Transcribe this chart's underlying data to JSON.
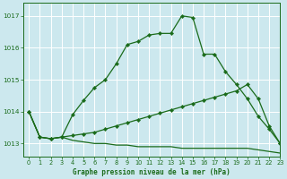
{
  "bg_color": "#cce8ee",
  "grid_color": "#ffffff",
  "line_color": "#1a6b1a",
  "title": "Graphe pression niveau de la mer (hPa)",
  "xlim": [
    -0.5,
    23
  ],
  "ylim": [
    1012.6,
    1017.4
  ],
  "yticks": [
    1013,
    1014,
    1015,
    1016,
    1017
  ],
  "xticks": [
    0,
    1,
    2,
    3,
    4,
    5,
    6,
    7,
    8,
    9,
    10,
    11,
    12,
    13,
    14,
    15,
    16,
    17,
    18,
    19,
    20,
    21,
    22,
    23
  ],
  "series1_x": [
    0,
    1,
    2,
    3,
    4,
    5,
    6,
    7,
    8,
    9,
    10,
    11,
    12,
    13,
    14,
    15,
    16,
    17,
    18,
    19,
    20,
    21,
    22,
    23
  ],
  "series1_y": [
    1014.0,
    1013.2,
    1013.15,
    1013.2,
    1013.9,
    1014.35,
    1014.75,
    1015.0,
    1015.5,
    1016.1,
    1016.2,
    1016.4,
    1016.45,
    1016.45,
    1017.0,
    1016.95,
    1015.8,
    1015.8,
    1015.25,
    1014.85,
    1014.4,
    1013.85,
    1013.45,
    1013.0
  ],
  "series2_x": [
    0,
    1,
    2,
    3,
    4,
    5,
    6,
    7,
    8,
    9,
    10,
    11,
    12,
    13,
    14,
    15,
    16,
    17,
    18,
    19,
    20,
    21,
    22,
    23
  ],
  "series2_y": [
    1014.0,
    1013.2,
    1013.15,
    1013.2,
    1013.25,
    1013.3,
    1013.35,
    1013.45,
    1013.55,
    1013.65,
    1013.75,
    1013.85,
    1013.95,
    1014.05,
    1014.15,
    1014.25,
    1014.35,
    1014.45,
    1014.55,
    1014.65,
    1014.85,
    1014.4,
    1013.55,
    1013.0
  ],
  "series3_x": [
    0,
    1,
    2,
    3,
    4,
    5,
    6,
    7,
    8,
    9,
    10,
    11,
    12,
    13,
    14,
    15,
    16,
    17,
    18,
    19,
    20,
    21,
    22,
    23
  ],
  "series3_y": [
    1014.0,
    1013.2,
    1013.15,
    1013.2,
    1013.1,
    1013.05,
    1013.0,
    1013.0,
    1012.95,
    1012.95,
    1012.9,
    1012.9,
    1012.9,
    1012.9,
    1012.85,
    1012.85,
    1012.85,
    1012.85,
    1012.85,
    1012.85,
    1012.85,
    1012.8,
    1012.75,
    1012.7
  ]
}
